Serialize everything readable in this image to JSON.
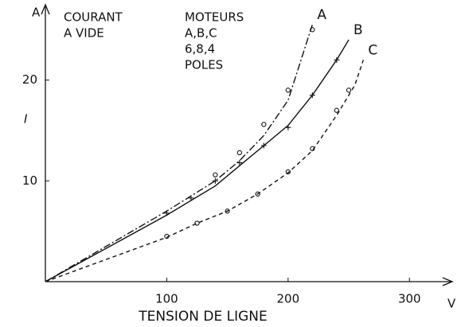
{
  "chart_data": {
    "type": "line",
    "y_unit": "A",
    "y_label": "I",
    "x_unit": "V",
    "x_label": "TENSION DE LIGNE",
    "annotations": [
      "COURANT",
      "A VIDE",
      "MOTEURS",
      "A,B,C",
      "6,8,4",
      "POLES"
    ],
    "xlim": [
      0,
      330
    ],
    "ylim": [
      0,
      27
    ],
    "xticks": [
      100,
      200,
      300
    ],
    "yticks": [
      10,
      20
    ],
    "series": [
      {
        "name": "A",
        "color": "#111",
        "style": "dashdot",
        "marker": "circle",
        "x": [
          0,
          50,
          100,
          140,
          160,
          180,
          200,
          220
        ],
        "values": [
          0,
          3.5,
          7,
          10,
          12,
          14.5,
          18,
          25.5
        ],
        "points_x": [
          140,
          160,
          180,
          200,
          220
        ],
        "points": [
          10.6,
          12.8,
          15.6,
          19,
          25
        ]
      },
      {
        "name": "B",
        "color": "#111",
        "style": "solid",
        "marker": "plus",
        "x": [
          0,
          50,
          100,
          140,
          160,
          180,
          200,
          220,
          240,
          250
        ],
        "values": [
          0,
          3.3,
          6.6,
          9.5,
          11.5,
          13.5,
          15.5,
          18.5,
          22,
          24
        ],
        "points_x": [
          100,
          120,
          140,
          160,
          180,
          200,
          220,
          240
        ],
        "points": [
          6.8,
          8.3,
          10,
          11.8,
          13.5,
          15.3,
          18.5,
          22
        ]
      },
      {
        "name": "C",
        "color": "#111",
        "style": "dashed",
        "marker": "circle",
        "x": [
          0,
          50,
          100,
          125,
          150,
          175,
          200,
          220,
          240,
          255,
          262
        ],
        "values": [
          0,
          2.2,
          4.4,
          5.8,
          7,
          8.7,
          10.8,
          13,
          16.5,
          19.5,
          22
        ],
        "points_x": [
          100,
          125,
          150,
          175,
          200,
          220,
          240,
          250
        ],
        "points": [
          4.5,
          5.8,
          7,
          8.7,
          10.9,
          13.2,
          17,
          19
        ]
      }
    ]
  }
}
